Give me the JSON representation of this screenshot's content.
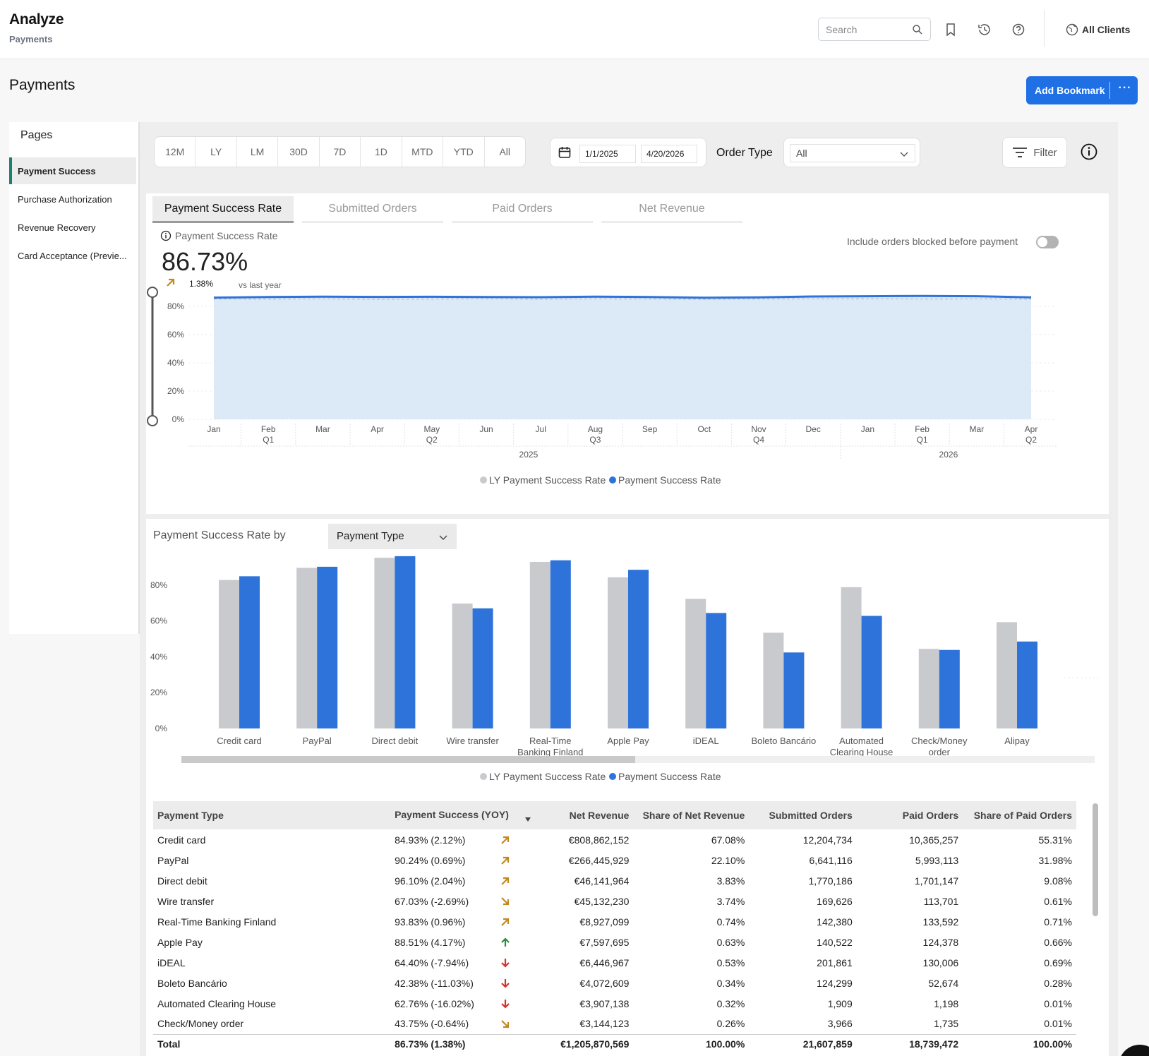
{
  "header": {
    "app_title": "Analyze",
    "app_subtitle": "Payments",
    "search_placeholder": "Search",
    "icons": [
      "search-icon",
      "bookmark-icon",
      "history-icon",
      "help-icon",
      "globe-icon"
    ],
    "all_clients_label": "All Clients"
  },
  "page": {
    "title": "Payments",
    "add_bookmark_label": "Add Bookmark",
    "more_label": "···"
  },
  "sidebar": {
    "title": "Pages",
    "items": [
      {
        "label": "Payment Success",
        "active": true
      },
      {
        "label": "Purchase Authorization",
        "active": false
      },
      {
        "label": "Revenue Recovery",
        "active": false
      },
      {
        "label": "Card Acceptance (Previe...",
        "active": false
      }
    ]
  },
  "filters": {
    "periods": [
      "12M",
      "LY",
      "LM",
      "30D",
      "7D",
      "1D",
      "MTD",
      "YTD",
      "All"
    ],
    "start_date": "1/1/2025",
    "end_date": "4/20/2026",
    "order_type_label": "Order Type",
    "order_type_value": "All",
    "filter_label": "Filter"
  },
  "tabs": [
    {
      "label": "Payment Success Rate",
      "active": true
    },
    {
      "label": "Submitted Orders",
      "active": false
    },
    {
      "label": "Paid Orders",
      "active": false
    },
    {
      "label": "Net Revenue",
      "active": false
    }
  ],
  "kpi": {
    "label": "Payment Success Rate",
    "value": "86.73%",
    "delta": "1.38%",
    "vs_label": "vs last year",
    "include_label": "Include orders blocked before payment"
  },
  "colors": {
    "accent": "#1f6fe5",
    "series_current": "#2e73d9",
    "series_ly": "#c8cacd",
    "area_fill": "#dce9f6",
    "up": "#c2891f",
    "down": "#d6322d",
    "up_green": "#2f8a3e"
  },
  "chart_data": [
    {
      "type": "area",
      "yticks": [
        "0%",
        "20%",
        "40%",
        "60%",
        "80%"
      ],
      "ylim": [
        0,
        100
      ],
      "months": [
        "Jan",
        "Feb",
        "Mar",
        "Apr",
        "May",
        "Jun",
        "Jul",
        "Aug",
        "Sep",
        "Oct",
        "Nov",
        "Dec",
        "Jan",
        "Feb",
        "Mar",
        "Apr"
      ],
      "quarters": [
        "",
        "Q1",
        "",
        "",
        "Q2",
        "",
        "",
        "Q3",
        "",
        "",
        "Q4",
        "",
        "",
        "Q1",
        "",
        "Q2"
      ],
      "years": [
        "2025",
        "2026"
      ],
      "series": [
        {
          "name": "LY Payment Success Rate",
          "values": [
            85.2,
            85.1,
            85.3,
            85.0,
            85.2,
            85.4,
            85.1,
            85.3,
            85.2,
            85.0,
            85.2,
            85.3,
            85.4,
            85.2,
            85.3,
            85.1
          ]
        },
        {
          "name": "Payment Success Rate",
          "values": [
            86.2,
            86.6,
            86.9,
            86.7,
            86.8,
            86.6,
            86.5,
            86.9,
            86.6,
            86.1,
            86.4,
            87.0,
            87.2,
            87.4,
            87.2,
            86.4
          ]
        }
      ]
    },
    {
      "type": "bar",
      "yticks": [
        "0%",
        "20%",
        "40%",
        "60%",
        "80%"
      ],
      "ylim": [
        0,
        100
      ],
      "categories": [
        "Credit card",
        "PayPal",
        "Direct debit",
        "Wire transfer",
        "Real-Time Banking Finland",
        "Apple Pay",
        "iDEAL",
        "Boleto Bancário",
        "Automated Clearing House",
        "Check/Money order",
        "Alipay"
      ],
      "category_lines": [
        [
          "Credit card"
        ],
        [
          "PayPal"
        ],
        [
          "Direct debit"
        ],
        [
          "Wire transfer"
        ],
        [
          "Real-Time",
          "Banking Finland"
        ],
        [
          "Apple Pay"
        ],
        [
          "iDEAL"
        ],
        [
          "Boleto Bancário"
        ],
        [
          "Automated",
          "Clearing House"
        ],
        [
          "Check/Money",
          "order"
        ],
        [
          "Alipay"
        ]
      ],
      "series": [
        {
          "name": "LY Payment Success Rate",
          "values": [
            82.8,
            89.6,
            95.2,
            69.7,
            92.9,
            84.3,
            72.3,
            53.4,
            78.8,
            44.4,
            59.3
          ]
        },
        {
          "name": "Payment Success Rate",
          "values": [
            84.9,
            90.2,
            96.1,
            67.0,
            93.8,
            88.5,
            64.4,
            42.4,
            62.8,
            43.8,
            48.5
          ]
        }
      ]
    }
  ],
  "breakdown": {
    "label": "Payment Success Rate by",
    "select_value": "Payment Type"
  },
  "table": {
    "columns": [
      "Payment Type",
      "Payment Success (YOY)",
      "Net Revenue",
      "Share of Net Revenue",
      "Submitted Orders",
      "Paid Orders",
      "Share of Paid Orders"
    ],
    "rows": [
      {
        "type": "Credit card",
        "success": "84.93% (2.12%)",
        "trend": "up",
        "net_revenue": "€808,862,152",
        "share_net": "67.08%",
        "submitted": "12,204,734",
        "paid": "10,365,257",
        "share_paid": "55.31%"
      },
      {
        "type": "PayPal",
        "success": "90.24% (0.69%)",
        "trend": "up",
        "net_revenue": "€266,445,929",
        "share_net": "22.10%",
        "submitted": "6,641,116",
        "paid": "5,993,113",
        "share_paid": "31.98%"
      },
      {
        "type": "Direct debit",
        "success": "96.10% (2.04%)",
        "trend": "up",
        "net_revenue": "€46,141,964",
        "share_net": "3.83%",
        "submitted": "1,770,186",
        "paid": "1,701,147",
        "share_paid": "9.08%"
      },
      {
        "type": "Wire transfer",
        "success": "67.03% (-2.69%)",
        "trend": "down",
        "net_revenue": "€45,132,230",
        "share_net": "3.74%",
        "submitted": "169,626",
        "paid": "113,701",
        "share_paid": "0.61%"
      },
      {
        "type": "Real-Time Banking Finland",
        "success": "93.83% (0.96%)",
        "trend": "up",
        "net_revenue": "€8,927,099",
        "share_net": "0.74%",
        "submitted": "142,380",
        "paid": "133,592",
        "share_paid": "0.71%"
      },
      {
        "type": "Apple Pay",
        "success": "88.51% (4.17%)",
        "trend": "strong-up",
        "net_revenue": "€7,597,695",
        "share_net": "0.63%",
        "submitted": "140,522",
        "paid": "124,378",
        "share_paid": "0.66%"
      },
      {
        "type": "iDEAL",
        "success": "64.40% (-7.94%)",
        "trend": "strong-down",
        "net_revenue": "€6,446,967",
        "share_net": "0.53%",
        "submitted": "201,861",
        "paid": "130,006",
        "share_paid": "0.69%"
      },
      {
        "type": "Boleto Bancário",
        "success": "42.38% (-11.03%)",
        "trend": "strong-down",
        "net_revenue": "€4,072,609",
        "share_net": "0.34%",
        "submitted": "124,299",
        "paid": "52,674",
        "share_paid": "0.28%"
      },
      {
        "type": "Automated Clearing House",
        "success": "62.76% (-16.02%)",
        "trend": "strong-down",
        "net_revenue": "€3,907,138",
        "share_net": "0.32%",
        "submitted": "1,909",
        "paid": "1,198",
        "share_paid": "0.01%"
      },
      {
        "type": "Check/Money order",
        "success": "43.75% (-0.64%)",
        "trend": "down",
        "net_revenue": "€3,144,123",
        "share_net": "0.26%",
        "submitted": "3,966",
        "paid": "1,735",
        "share_paid": "0.01%"
      }
    ],
    "total": {
      "type": "Total",
      "success": "86.73% (1.38%)",
      "net_revenue": "€1,205,870,569",
      "share_net": "100.00%",
      "submitted": "21,607,859",
      "paid": "18,739,472",
      "share_paid": "100.00%"
    }
  }
}
